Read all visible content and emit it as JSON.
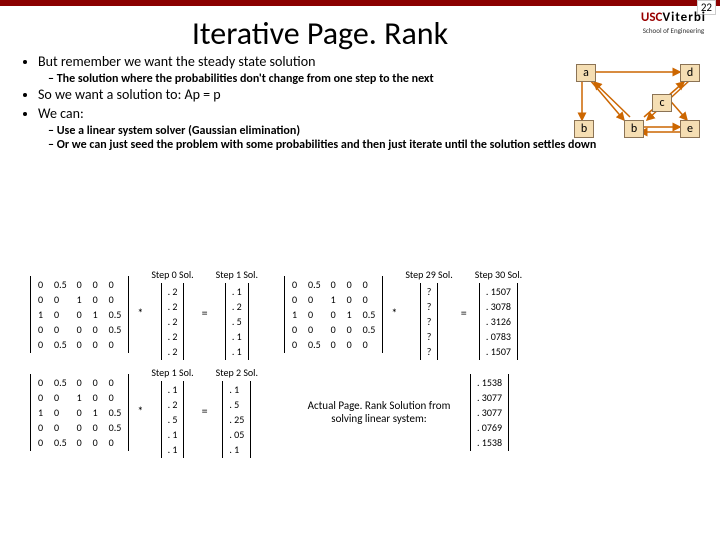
{
  "page_number": "22",
  "logo": {
    "red": "USC",
    "black": "Viterbi",
    "sub": "School of Engineering"
  },
  "title": "Iterative Page. Rank",
  "bullets": {
    "b1": "But remember we want the steady state solution",
    "b1s1": "The solution where the probabilities don't change from one step to the next",
    "b2": "So we want a solution to:  Ap = p",
    "b3": "We can:",
    "b3s1": "Use a linear system solver (Gaussian elimination)",
    "b3s2": "Or we can just seed the problem with some probabilities and then just iterate until the solution settles down"
  },
  "graph": {
    "nodes": {
      "a": "a",
      "b": "b",
      "c": "c",
      "d": "d",
      "e": "e"
    },
    "node_colors": {
      "fill": "#f5deb3",
      "border": "#8b7355"
    },
    "edge_color": "#cc6600"
  },
  "steps": {
    "s0": "Step 0 Sol.",
    "s1": "Step 1 Sol.",
    "s2": "Step 2 Sol.",
    "s29": "Step 29 Sol.",
    "s30": "Step 30 Sol."
  },
  "matrix": {
    "rows": [
      [
        "0",
        "0.5",
        "0",
        "0",
        "0"
      ],
      [
        "0",
        "0",
        "1",
        "0",
        "0"
      ],
      [
        "1",
        "0",
        "0",
        "1",
        "0.5"
      ],
      [
        "0",
        "0",
        "0",
        "0",
        "0.5"
      ],
      [
        "0",
        "0.5",
        "0",
        "0",
        "0"
      ]
    ]
  },
  "vec_s0": [
    ". 2",
    ". 2",
    ". 2",
    ". 2",
    ". 2"
  ],
  "vec_s1": [
    ". 1",
    ". 2",
    ". 5",
    ". 1",
    ". 1"
  ],
  "vec_s1b": [
    ". 1",
    ". 2",
    ". 5",
    ". 1",
    ". 1"
  ],
  "vec_s2": [
    ". 1",
    ". 5",
    ". 25",
    ". 05",
    ". 1"
  ],
  "vec_s29": [
    "?",
    "?",
    "?",
    "?",
    "?"
  ],
  "vec_s30": [
    ". 1507",
    ". 3078",
    ". 3126",
    ". 0783",
    ". 1507"
  ],
  "vec_actual": [
    ". 1538",
    ". 3077",
    ". 3077",
    ". 0769",
    ". 1538"
  ],
  "ops": {
    "star": "*",
    "eq": "="
  },
  "result_text": "Actual Page. Rank Solution from solving linear system:",
  "colors": {
    "topbar": "#8b0000",
    "usc_red": "#990000",
    "text": "#000000",
    "background": "#ffffff"
  }
}
